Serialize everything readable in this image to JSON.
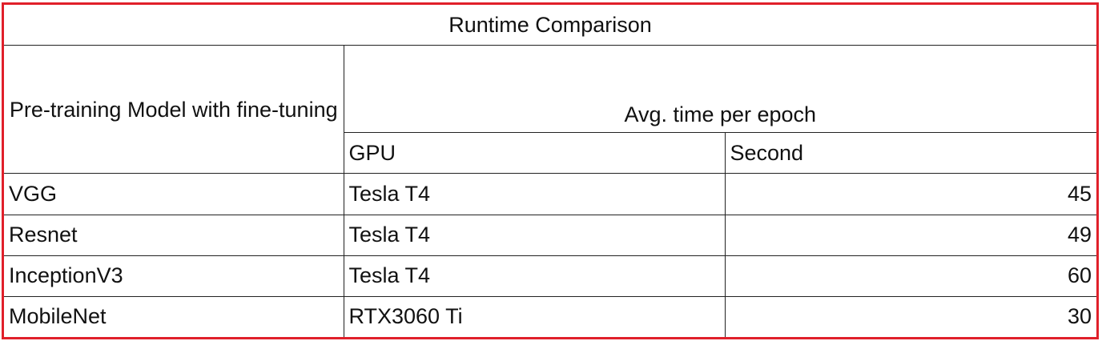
{
  "table": {
    "title": "Runtime Comparison",
    "model_header": "Pre-training Model with fine-tuning",
    "avg_header": "Avg. time per epoch",
    "gpu_header": "GPU",
    "second_header": "Second",
    "rows": [
      {
        "model": "VGG",
        "gpu": "Tesla T4",
        "seconds": "45"
      },
      {
        "model": "Resnet",
        "gpu": "Tesla T4",
        "seconds": "49"
      },
      {
        "model": "InceptionV3",
        "gpu": "Tesla T4",
        "seconds": "60"
      },
      {
        "model": "MobileNet",
        "gpu": "RTX3060 Ti",
        "seconds": "30"
      }
    ]
  },
  "colors": {
    "frame_border": "#e0202a",
    "grid_lines": "#222222"
  }
}
